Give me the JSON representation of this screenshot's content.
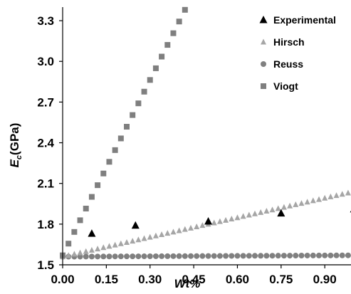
{
  "chart_data": {
    "type": "scatter",
    "xlabel": "Wt%",
    "ylabel_main": "E",
    "ylabel_sub": "c",
    "ylabel_unit": "(GPa)",
    "xlim": [
      0,
      0.99
    ],
    "ylim": [
      1.5,
      3.4
    ],
    "xticks": [
      0.0,
      0.15,
      0.3,
      0.45,
      0.6,
      0.75,
      0.9
    ],
    "xtick_labels": [
      "0.00",
      "0.15",
      "0.30",
      "0.45",
      "0.60",
      "0.75",
      "0.90"
    ],
    "yticks": [
      1.5,
      1.8,
      2.1,
      2.4,
      2.7,
      3.0,
      3.3
    ],
    "ytick_labels": [
      "1.5",
      "1.8",
      "2.1",
      "2.4",
      "2.7",
      "3.0",
      "3.3"
    ],
    "grid": false,
    "legend_position": "top-right",
    "series": [
      {
        "name": "Experimental",
        "marker": "triangle-black",
        "color": "#000000",
        "x": [
          0.1,
          0.25,
          0.5,
          0.75,
          1.0
        ],
        "y": [
          1.73,
          1.79,
          1.82,
          1.88,
          1.91
        ]
      },
      {
        "name": "Hirsch",
        "marker": "triangle-gray",
        "color": "#a6a6a6",
        "x_start": 0.0,
        "x_end": 1.0,
        "x_step": 0.02,
        "y_start": 1.56,
        "y_end": 2.04
      },
      {
        "name": "Reuss",
        "marker": "circle",
        "color": "#808080",
        "x_start": 0.0,
        "x_end": 1.0,
        "x_step": 0.02,
        "y_start": 1.56,
        "y_end": 1.57
      },
      {
        "name": "Viogt",
        "marker": "square",
        "color": "#7f7f7f",
        "x_start": 0.0,
        "x_end": 0.42,
        "x_step": 0.02,
        "y_start": 1.57,
        "y_end": 3.38
      }
    ]
  }
}
